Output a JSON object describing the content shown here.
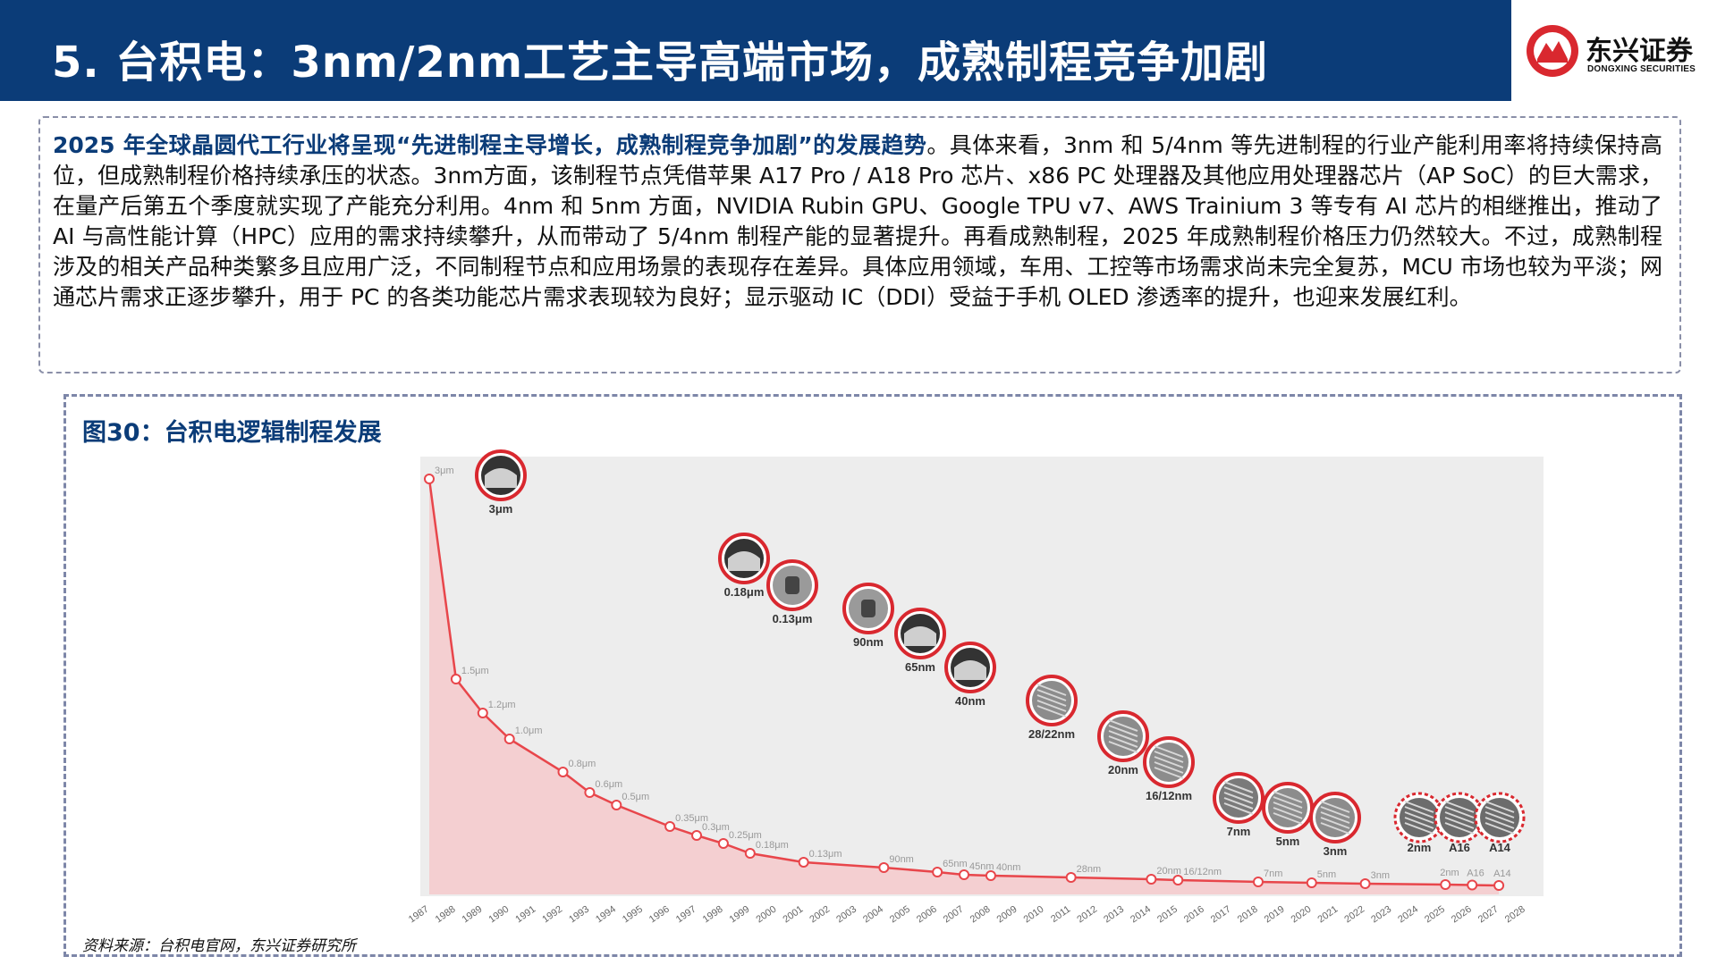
{
  "header": {
    "title": "5. 台积电：3nm/2nm工艺主导高端市场，成熟制程竞争加剧",
    "logo_cn": "东兴证券",
    "logo_en": "DONGXING SECURITIES",
    "bg_color": "#0b3c78"
  },
  "summary": {
    "highlight": "2025 年全球晶圆代工行业将呈现“先进制程主导增长，成熟制程竞争加剧”的发展趋势",
    "body": "。具体来看，3nm 和 5/4nm 等先进制程的行业产能利用率将持续保持高位，但成熟制程价格持续承压的状态。3nm方面，该制程节点凭借苹果 A17 Pro / A18 Pro 芯片、x86 PC 处理器及其他应用处理器芯片（AP SoC）的巨大需求，在量产后第五个季度就实现了产能充分利用。4nm 和 5nm 方面，NVIDIA Rubin GPU、Google TPU v7、AWS Trainium 3 等专有 AI 芯片的相继推出，推动了 AI 与高性能计算（HPC）应用的需求持续攀升，从而带动了 5/4nm 制程产能的显著提升。再看成熟制程，2025 年成熟制程价格压力仍然较大。不过，成熟制程涉及的相关产品种类繁多且应用广泛，不同制程节点和应用场景的表现存在差异。具体应用领域，车用、工控等市场需求尚未完全复苏，MCU 市场也较为平淡；网通芯片需求正逐步攀升，用于 PC 的各类功能芯片需求表现较为良好；显示驱动 IC（DDI）受益于手机 OLED 渗透率的提升，也迎来发展红利。"
  },
  "figure": {
    "title": "图30：台积电逻辑制程发展",
    "source": "资料来源：台积电官网，东兴证券研究所"
  },
  "chart_data": {
    "type": "line",
    "title": "",
    "xlabel": "",
    "ylabel": "",
    "x_ticks": [
      "1987",
      "1988",
      "1989",
      "1990",
      "1991",
      "1992",
      "1993",
      "1994",
      "1995",
      "1996",
      "1997",
      "1998",
      "1999",
      "2000",
      "2001",
      "2002",
      "2003",
      "2004",
      "2005",
      "2006",
      "2007",
      "2008",
      "2009",
      "2010",
      "2011",
      "2012",
      "2013",
      "2014",
      "2015",
      "2016",
      "2017",
      "2018",
      "2019",
      "2020",
      "2021",
      "2022",
      "2023",
      "2024",
      "2025",
      "2026",
      "2027",
      "2028"
    ],
    "line_color": "#e8464b",
    "fill_color": "#f4c9cb",
    "points": [
      {
        "year": 1987,
        "label": "3μm",
        "value_um": 3.0
      },
      {
        "year": 1988,
        "label": "1.5μm",
        "value_um": 1.5
      },
      {
        "year": 1989,
        "label": "1.2μm",
        "value_um": 1.2
      },
      {
        "year": 1990,
        "label": "1.0μm",
        "value_um": 1.0
      },
      {
        "year": 1992,
        "label": "0.8μm",
        "value_um": 0.8
      },
      {
        "year": 1993,
        "label": "0.6μm",
        "value_um": 0.6
      },
      {
        "year": 1994,
        "label": "0.5μm",
        "value_um": 0.5
      },
      {
        "year": 1996,
        "label": "0.35μm",
        "value_um": 0.35
      },
      {
        "year": 1997,
        "label": "0.3μm",
        "value_um": 0.3
      },
      {
        "year": 1998,
        "label": "0.25μm",
        "value_um": 0.25
      },
      {
        "year": 1999,
        "label": "0.18μm",
        "value_um": 0.18
      },
      {
        "year": 2001,
        "label": "0.13μm",
        "value_um": 0.13
      },
      {
        "year": 2004,
        "label": "90nm",
        "value_um": 0.09
      },
      {
        "year": 2006,
        "label": "65nm",
        "value_um": 0.065
      },
      {
        "year": 2007,
        "label": "45nm",
        "value_um": 0.045
      },
      {
        "year": 2008,
        "label": "40nm",
        "value_um": 0.04
      },
      {
        "year": 2011,
        "label": "28nm",
        "value_um": 0.028
      },
      {
        "year": 2014,
        "label": "20nm",
        "value_um": 0.02
      },
      {
        "year": 2015,
        "label": "16/12nm",
        "value_um": 0.016
      },
      {
        "year": 2018,
        "label": "7nm",
        "value_um": 0.007
      },
      {
        "year": 2020,
        "label": "5nm",
        "value_um": 0.005
      },
      {
        "year": 2022,
        "label": "3nm",
        "value_um": 0.003
      },
      {
        "year": 2025,
        "label": "2nm",
        "value_um": 0.002
      },
      {
        "year": 2026,
        "label": "A16",
        "value_um": 0.0016
      },
      {
        "year": 2027,
        "label": "A14",
        "value_um": 0.0014
      }
    ],
    "node_images": [
      {
        "label": "3μm",
        "style": "dark"
      },
      {
        "label": "0.18μm",
        "style": "dark"
      },
      {
        "label": "0.13μm",
        "style": "light"
      },
      {
        "label": "90nm",
        "style": "light"
      },
      {
        "label": "65nm",
        "style": "dark"
      },
      {
        "label": "40nm",
        "style": "dark"
      },
      {
        "label": "28/22nm",
        "style": "stripe"
      },
      {
        "label": "20nm",
        "style": "stripe"
      },
      {
        "label": "16/12nm",
        "style": "stripe"
      },
      {
        "label": "7nm",
        "style": "grid"
      },
      {
        "label": "5nm",
        "style": "stripe"
      },
      {
        "label": "3nm",
        "style": "stripe"
      },
      {
        "label": "2nm",
        "style": "future"
      },
      {
        "label": "A16",
        "style": "future"
      },
      {
        "label": "A14",
        "style": "future"
      }
    ]
  }
}
